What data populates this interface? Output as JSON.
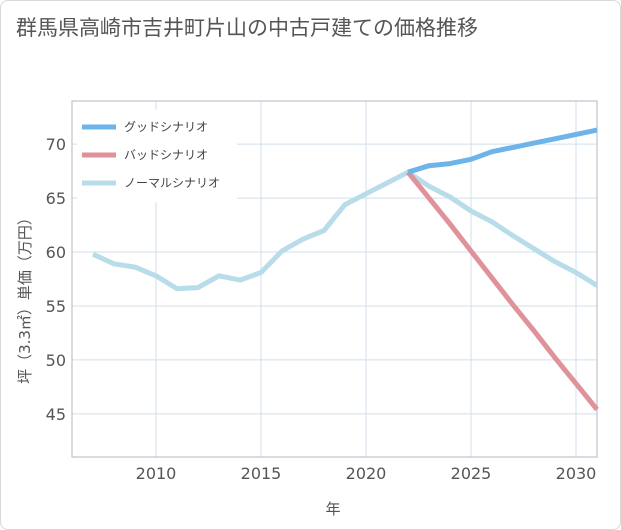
{
  "chart_data": {
    "type": "line",
    "title": "群馬県高崎市吉井町片山の中古戸建ての価格推移",
    "xlabel": "年",
    "ylabel": "坪（3.3㎡）単価（万円）",
    "xlim": [
      2006,
      2031
    ],
    "ylim": [
      41,
      74
    ],
    "xticks": [
      2010,
      2015,
      2020,
      2025,
      2030
    ],
    "yticks": [
      45,
      50,
      55,
      60,
      65,
      70
    ],
    "grid": true,
    "legend_position": "top-left",
    "series": [
      {
        "name": "グッドシナリオ",
        "color": "#6cb4ea",
        "x": [
          2022,
          2023,
          2024,
          2025,
          2026,
          2027,
          2028,
          2029,
          2030,
          2031
        ],
        "y": [
          67.4,
          68.0,
          68.2,
          68.6,
          69.3,
          69.7,
          70.1,
          70.5,
          70.9,
          71.3
        ]
      },
      {
        "name": "バッドシナリオ",
        "color": "#e0929a",
        "x": [
          2022,
          2023,
          2024,
          2025,
          2026,
          2027,
          2028,
          2029,
          2030,
          2031
        ],
        "y": [
          67.4,
          65.0,
          62.6,
          60.1,
          57.6,
          55.1,
          52.7,
          50.2,
          47.8,
          45.4
        ]
      },
      {
        "name": "ノーマルシナリオ",
        "color": "#b8dcea",
        "x": [
          2007,
          2008,
          2009,
          2010,
          2011,
          2012,
          2013,
          2014,
          2015,
          2016,
          2017,
          2018,
          2019,
          2020,
          2021,
          2022,
          2023,
          2024,
          2025,
          2026,
          2027,
          2028,
          2029,
          2030,
          2031
        ],
        "y": [
          59.8,
          58.9,
          58.6,
          57.8,
          56.6,
          56.7,
          57.8,
          57.4,
          58.1,
          60.1,
          61.2,
          62.0,
          64.4,
          65.4,
          66.4,
          67.4,
          66.1,
          65.1,
          63.8,
          62.8,
          61.5,
          60.3,
          59.1,
          58.1,
          56.9
        ]
      }
    ]
  }
}
